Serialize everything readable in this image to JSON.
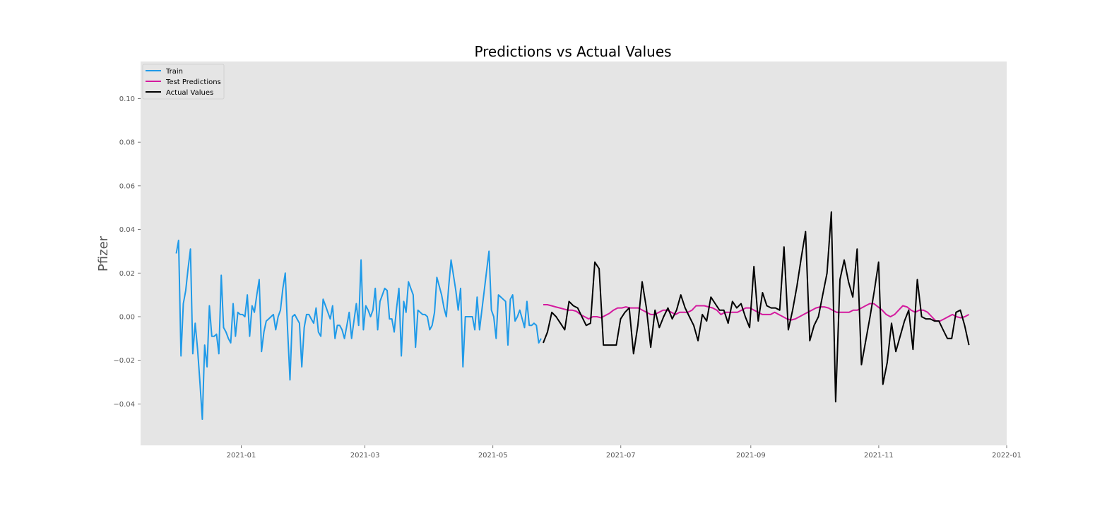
{
  "chart_data": {
    "type": "line",
    "title": "Predictions vs Actual Values",
    "xlabel": "",
    "ylabel": "Pfizer",
    "xlim": [
      "2020-11-14",
      "2022-01-01"
    ],
    "ylim": [
      -0.059,
      0.117
    ],
    "x_ticks": [
      "2021-01",
      "2021-03",
      "2021-05",
      "2021-07",
      "2021-09",
      "2021-11",
      "2022-01"
    ],
    "y_ticks": [
      -0.04,
      -0.02,
      0.0,
      0.02,
      0.04,
      0.06,
      0.08,
      0.1
    ],
    "y_tick_labels": [
      "−0.04",
      "−0.02",
      "0.00",
      "0.02",
      "0.04",
      "0.06",
      "0.08",
      "0.10"
    ],
    "grid": false,
    "background": "#e5e5e5",
    "legend_position": "top-left",
    "series": [
      {
        "name": "Train",
        "color": "#1f9ae8",
        "x_start": "2020-12-01",
        "x_end": "2021-05-24",
        "values": [
          0.029,
          0.035,
          -0.018,
          0.006,
          0.012,
          0.022,
          0.031,
          -0.017,
          -0.003,
          -0.015,
          -0.03,
          -0.047,
          -0.013,
          -0.023,
          0.005,
          -0.009,
          -0.009,
          -0.008,
          -0.017,
          0.019,
          -0.005,
          -0.007,
          -0.01,
          -0.012,
          0.006,
          -0.009,
          0.002,
          0.001,
          0.001,
          0.0,
          0.01,
          -0.009,
          0.005,
          0.002,
          0.01,
          0.017,
          -0.016,
          -0.007,
          -0.002,
          -0.001,
          0.0,
          0.001,
          -0.006,
          0.0,
          0.003,
          0.013,
          0.02,
          -0.006,
          -0.029,
          0.0,
          0.001,
          -0.001,
          -0.003,
          -0.023,
          -0.005,
          0.001,
          0.001,
          -0.001,
          -0.003,
          0.004,
          -0.007,
          -0.009,
          0.008,
          0.005,
          0.002,
          -0.001,
          0.005,
          -0.01,
          -0.004,
          -0.004,
          -0.006,
          -0.01,
          -0.004,
          0.002,
          -0.01,
          -0.002,
          0.006,
          -0.004,
          0.026,
          -0.006,
          0.005,
          0.003,
          0.0,
          0.003,
          0.013,
          -0.006,
          0.007,
          0.01,
          0.013,
          0.012,
          -0.001,
          -0.001,
          -0.007,
          0.004,
          0.013,
          -0.018,
          0.007,
          0.002,
          0.016,
          0.013,
          0.01,
          -0.014,
          0.003,
          0.002,
          0.001,
          0.001,
          0.0,
          -0.006,
          -0.004,
          0.002,
          0.018,
          0.014,
          0.01,
          0.004,
          0.0,
          0.014,
          0.026,
          0.019,
          0.012,
          0.003,
          0.013,
          -0.023,
          0.0,
          0.0,
          0.0,
          0.0,
          -0.006,
          0.009,
          -0.006,
          0.003,
          0.012,
          0.021,
          0.03,
          0.003,
          0.0,
          -0.01,
          0.01,
          0.009,
          0.008,
          0.007,
          -0.013,
          0.008,
          0.01,
          -0.002,
          0.0,
          0.003,
          -0.001,
          -0.005,
          0.007,
          -0.004,
          -0.004,
          -0.003,
          -0.004,
          -0.012,
          -0.01
        ]
      },
      {
        "name": "Test Predictions",
        "color": "#d41a9e",
        "x_start": "2021-05-25",
        "x_end": "2021-12-14",
        "values": [
          0.0055,
          0.0055,
          0.005,
          0.0045,
          0.004,
          0.0035,
          0.003,
          0.003,
          0.0025,
          0.001,
          0.0,
          -0.001,
          0.0,
          0.0,
          -0.0005,
          0.0005,
          0.0015,
          0.003,
          0.004,
          0.004,
          0.0045,
          0.004,
          0.004,
          0.004,
          0.003,
          0.002,
          0.001,
          0.001,
          0.002,
          0.003,
          0.003,
          0.002,
          0.001,
          0.002,
          0.002,
          0.002,
          0.003,
          0.005,
          0.005,
          0.005,
          0.0045,
          0.004,
          0.003,
          0.001,
          0.002,
          0.002,
          0.002,
          0.002,
          0.003,
          0.004,
          0.004,
          0.003,
          0.002,
          0.001,
          0.001,
          0.001,
          0.002,
          0.001,
          0.0,
          -0.001,
          -0.0015,
          -0.001,
          0.0,
          0.001,
          0.002,
          0.003,
          0.004,
          0.0045,
          0.0045,
          0.004,
          0.003,
          0.002,
          0.002,
          0.002,
          0.002,
          0.003,
          0.003,
          0.004,
          0.005,
          0.006,
          0.006,
          0.0045,
          0.003,
          0.001,
          0.0,
          0.001,
          0.003,
          0.005,
          0.0045,
          0.003,
          0.002,
          0.003,
          0.003,
          0.002,
          0.0,
          -0.002,
          -0.002,
          -0.001,
          0.0,
          0.001,
          0.0,
          -0.0005,
          0.0,
          0.001
        ]
      },
      {
        "name": "Actual Values",
        "color": "#000000",
        "x_start": "2021-05-25",
        "x_end": "2021-12-14",
        "values": [
          -0.012,
          -0.007,
          0.002,
          0.0,
          -0.003,
          -0.006,
          0.007,
          0.005,
          0.004,
          0.0,
          -0.004,
          -0.003,
          0.025,
          0.022,
          -0.013,
          -0.013,
          -0.013,
          -0.013,
          -0.001,
          0.002,
          0.004,
          -0.017,
          -0.004,
          0.016,
          0.004,
          -0.014,
          0.003,
          -0.005,
          0.0,
          0.004,
          -0.001,
          0.003,
          0.01,
          0.004,
          0.0,
          -0.004,
          -0.011,
          0.001,
          -0.002,
          0.009,
          0.006,
          0.003,
          0.003,
          -0.003,
          0.007,
          0.004,
          0.006,
          0.0,
          -0.005,
          0.023,
          -0.002,
          0.011,
          0.005,
          0.004,
          0.004,
          0.003,
          0.032,
          -0.006,
          0.003,
          0.014,
          0.027,
          0.039,
          -0.011,
          -0.004,
          0.0,
          0.01,
          0.02,
          0.048,
          -0.039,
          0.017,
          0.026,
          0.016,
          0.009,
          0.031,
          -0.022,
          -0.011,
          0.0,
          0.012,
          0.025,
          -0.031,
          -0.021,
          -0.003,
          -0.016,
          -0.009,
          -0.002,
          0.003,
          -0.015,
          0.017,
          0.0,
          -0.001,
          -0.001,
          -0.002,
          -0.002,
          -0.006,
          -0.01,
          -0.01,
          0.002,
          0.003,
          -0.004,
          -0.013
        ]
      }
    ]
  },
  "colors": {
    "plot_background": "#e5e5e5",
    "train": "#1f9ae8",
    "test_predictions": "#d41a9e",
    "actual_values": "#000000"
  }
}
